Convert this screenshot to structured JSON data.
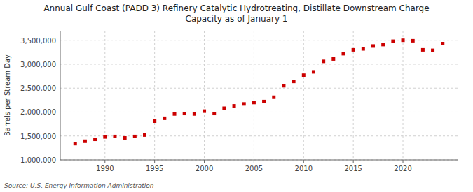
{
  "chart_data": {
    "type": "scatter",
    "title": "Annual Gulf Coast (PADD 3) Refinery Catalytic Hydrotreating, Distillate Downstream Charge\nCapacity as of January 1",
    "y_label": "Barrels per Stream Day",
    "annotations": [
      "Source: U.S. Energy Information Administration"
    ],
    "color": "#cc0000",
    "marker": "square",
    "grid": true,
    "x": [
      1987,
      1988,
      1989,
      1990,
      1991,
      1992,
      1993,
      1994,
      1995,
      1996,
      1997,
      1998,
      1999,
      2000,
      2001,
      2002,
      2003,
      2004,
      2005,
      2006,
      2007,
      2008,
      2009,
      2010,
      2011,
      2012,
      2013,
      2014,
      2015,
      2016,
      2017,
      2018,
      2019,
      2020,
      2021,
      2022,
      2023,
      2024
    ],
    "values": [
      1340000,
      1390000,
      1430000,
      1480000,
      1490000,
      1460000,
      1490000,
      1520000,
      1810000,
      1870000,
      1960000,
      1970000,
      1960000,
      2020000,
      1970000,
      2080000,
      2130000,
      2170000,
      2200000,
      2220000,
      2310000,
      2550000,
      2640000,
      2770000,
      2840000,
      3060000,
      3110000,
      3220000,
      3300000,
      3320000,
      3380000,
      3410000,
      3480000,
      3500000,
      3490000,
      3300000,
      3290000,
      3430000
    ],
    "xlim": [
      1985.5,
      2025.5
    ],
    "xticks": [
      1990,
      1995,
      2000,
      2005,
      2010,
      2015,
      2020
    ],
    "ylim": [
      1000000,
      3700000
    ],
    "yticks": [
      {
        "value": 1000000,
        "label": "1,000,000"
      },
      {
        "value": 1500000,
        "label": "1,500,000"
      },
      {
        "value": 2000000,
        "label": "2,000,000"
      },
      {
        "value": 2500000,
        "label": "2,500,000"
      },
      {
        "value": 3000000,
        "label": "3,000,000"
      },
      {
        "value": 3500000,
        "label": "3,500,000"
      }
    ]
  }
}
